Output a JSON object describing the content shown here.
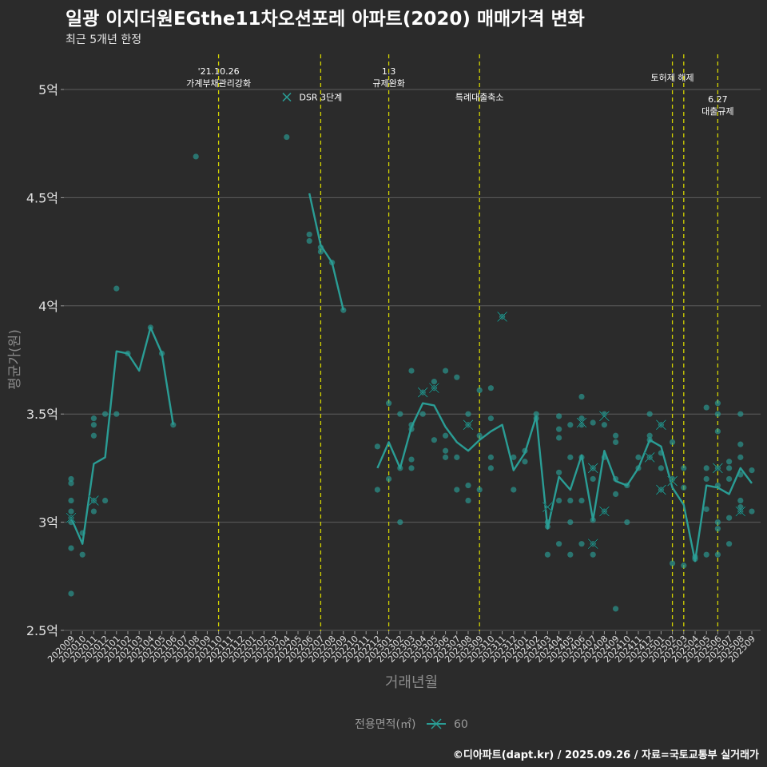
{
  "header": {
    "title": "일광 이지더원EGthe11차오션포레 아파트(2020) 매매가격 변화",
    "subtitle": "최근 5개년 한정"
  },
  "caption": "©디아파트(dapt.kr) / 2025.09.26 / 자료=국토교통부 실거래가",
  "colors": {
    "background": "#2b2b2b",
    "series": "#2a9d95",
    "grid": "#5e5e5e",
    "event_line": "#d4d400",
    "annotation_text": "#ffffff"
  },
  "legend": {
    "title": "전용면적(㎡)",
    "items": [
      {
        "label": "60",
        "icon": "line-with-x-marker"
      }
    ]
  },
  "chart_data": {
    "type": "line",
    "xlabel": "거래년월",
    "ylabel": "평균가(원)",
    "ylim": [
      2.5,
      5.15
    ],
    "yticks": [
      2.5,
      3,
      3.5,
      4,
      4.5,
      5
    ],
    "ytick_labels": [
      "2.5억",
      "3억",
      "3.5억",
      "4억",
      "4.5억",
      "5억"
    ],
    "grid": true,
    "legend_position": "bottom",
    "categories": [
      "202009",
      "202010",
      "202011",
      "202012",
      "202101",
      "202102",
      "202103",
      "202104",
      "202105",
      "202106",
      "202107",
      "202108",
      "202109",
      "202110",
      "202111",
      "202112",
      "202201",
      "202202",
      "202203",
      "202204",
      "202205",
      "202206",
      "202207",
      "202208",
      "202209",
      "202210",
      "202211",
      "202212",
      "202301",
      "202302",
      "202303",
      "202304",
      "202305",
      "202306",
      "202307",
      "202308",
      "202309",
      "202310",
      "202311",
      "202312",
      "202401",
      "202402",
      "202403",
      "202404",
      "202405",
      "202406",
      "202407",
      "202408",
      "202409",
      "202410",
      "202411",
      "202412",
      "202501",
      "202502",
      "202503",
      "202504",
      "202505",
      "202506",
      "202507",
      "202508",
      "202509"
    ],
    "series": [
      {
        "name": "60",
        "values": [
          3.02,
          2.9,
          3.27,
          3.3,
          3.79,
          3.78,
          3.7,
          3.9,
          3.78,
          3.45,
          null,
          null,
          null,
          null,
          null,
          null,
          null,
          null,
          null,
          null,
          null,
          4.52,
          4.28,
          4.2,
          3.98,
          null,
          null,
          3.25,
          3.37,
          3.25,
          3.44,
          3.55,
          3.54,
          3.44,
          3.37,
          3.33,
          3.38,
          3.42,
          3.45,
          3.24,
          3.32,
          3.49,
          2.97,
          3.21,
          3.15,
          3.31,
          3.01,
          3.33,
          3.19,
          3.17,
          3.25,
          3.38,
          3.35,
          3.16,
          3.08,
          2.82,
          3.17,
          3.16,
          3.13,
          3.25,
          3.18
        ]
      }
    ],
    "points": [
      [
        "202009",
        3.2
      ],
      [
        "202009",
        3.18
      ],
      [
        "202009",
        3.1
      ],
      [
        "202009",
        3.05
      ],
      [
        "202009",
        3.02
      ],
      [
        "202009",
        3.0
      ],
      [
        "202009",
        2.88
      ],
      [
        "202009",
        2.67
      ],
      [
        "202010",
        2.95
      ],
      [
        "202010",
        2.85
      ],
      [
        "202011",
        3.48
      ],
      [
        "202011",
        3.45
      ],
      [
        "202011",
        3.4
      ],
      [
        "202011",
        3.1
      ],
      [
        "202011",
        3.05
      ],
      [
        "202012",
        3.5
      ],
      [
        "202012",
        3.1
      ],
      [
        "202101",
        4.08
      ],
      [
        "202101",
        3.5
      ],
      [
        "202102",
        3.78
      ],
      [
        "202104",
        3.9
      ],
      [
        "202105",
        3.78
      ],
      [
        "202106",
        3.45
      ],
      [
        "202108",
        4.69
      ],
      [
        "202204",
        4.78
      ],
      [
        "202206",
        4.33
      ],
      [
        "202206",
        4.3
      ],
      [
        "202207",
        4.27
      ],
      [
        "202207",
        4.25
      ],
      [
        "202208",
        4.2
      ],
      [
        "202209",
        3.98
      ],
      [
        "202212",
        3.35
      ],
      [
        "202212",
        3.15
      ],
      [
        "202301",
        3.55
      ],
      [
        "202301",
        3.2
      ],
      [
        "202302",
        3.5
      ],
      [
        "202302",
        3.25
      ],
      [
        "202302",
        3.0
      ],
      [
        "202303",
        3.7
      ],
      [
        "202303",
        3.45
      ],
      [
        "202303",
        3.43
      ],
      [
        "202303",
        3.29
      ],
      [
        "202303",
        3.25
      ],
      [
        "202304",
        3.6
      ],
      [
        "202304",
        3.5
      ],
      [
        "202305",
        3.65
      ],
      [
        "202305",
        3.62
      ],
      [
        "202305",
        3.38
      ],
      [
        "202306",
        3.7
      ],
      [
        "202306",
        3.4
      ],
      [
        "202306",
        3.33
      ],
      [
        "202306",
        3.3
      ],
      [
        "202307",
        3.67
      ],
      [
        "202307",
        3.3
      ],
      [
        "202307",
        3.15
      ],
      [
        "202308",
        3.5
      ],
      [
        "202308",
        3.45
      ],
      [
        "202308",
        3.17
      ],
      [
        "202308",
        3.1
      ],
      [
        "202309",
        3.61
      ],
      [
        "202309",
        3.4
      ],
      [
        "202309",
        3.15
      ],
      [
        "202310",
        3.62
      ],
      [
        "202310",
        3.48
      ],
      [
        "202310",
        3.3
      ],
      [
        "202310",
        3.25
      ],
      [
        "202311",
        3.95
      ],
      [
        "202312",
        3.3
      ],
      [
        "202312",
        3.15
      ],
      [
        "202401",
        3.33
      ],
      [
        "202401",
        3.28
      ],
      [
        "202402",
        3.5
      ],
      [
        "202402",
        3.48
      ],
      [
        "202403",
        3.0
      ],
      [
        "202403",
        2.98
      ],
      [
        "202403",
        2.85
      ],
      [
        "202404",
        3.49
      ],
      [
        "202404",
        3.43
      ],
      [
        "202404",
        3.39
      ],
      [
        "202404",
        3.23
      ],
      [
        "202404",
        3.1
      ],
      [
        "202404",
        2.9
      ],
      [
        "202405",
        3.45
      ],
      [
        "202405",
        3.3
      ],
      [
        "202405",
        3.1
      ],
      [
        "202405",
        3.0
      ],
      [
        "202405",
        2.85
      ],
      [
        "202406",
        3.58
      ],
      [
        "202406",
        3.48
      ],
      [
        "202406",
        3.45
      ],
      [
        "202406",
        3.3
      ],
      [
        "202406",
        3.1
      ],
      [
        "202406",
        2.9
      ],
      [
        "202407",
        3.46
      ],
      [
        "202407",
        3.25
      ],
      [
        "202407",
        3.2
      ],
      [
        "202407",
        3.01
      ],
      [
        "202407",
        2.9
      ],
      [
        "202407",
        2.85
      ],
      [
        "202408",
        3.5
      ],
      [
        "202408",
        3.45
      ],
      [
        "202408",
        3.3
      ],
      [
        "202408",
        3.05
      ],
      [
        "202409",
        3.4
      ],
      [
        "202409",
        3.37
      ],
      [
        "202409",
        3.2
      ],
      [
        "202409",
        3.13
      ],
      [
        "202409",
        2.6
      ],
      [
        "202410",
        3.17
      ],
      [
        "202410",
        3.0
      ],
      [
        "202411",
        3.3
      ],
      [
        "202411",
        3.25
      ],
      [
        "202412",
        3.5
      ],
      [
        "202412",
        3.4
      ],
      [
        "202412",
        3.38
      ],
      [
        "202412",
        3.3
      ],
      [
        "202501",
        3.45
      ],
      [
        "202501",
        3.32
      ],
      [
        "202501",
        3.25
      ],
      [
        "202501",
        3.15
      ],
      [
        "202502",
        3.37
      ],
      [
        "202502",
        3.2
      ],
      [
        "202502",
        2.81
      ],
      [
        "202503",
        3.25
      ],
      [
        "202503",
        3.16
      ],
      [
        "202503",
        2.8
      ],
      [
        "202504",
        2.84
      ],
      [
        "202504",
        2.83
      ],
      [
        "202505",
        3.53
      ],
      [
        "202505",
        3.25
      ],
      [
        "202505",
        3.2
      ],
      [
        "202505",
        3.06
      ],
      [
        "202505",
        2.85
      ],
      [
        "202506",
        3.55
      ],
      [
        "202506",
        3.5
      ],
      [
        "202506",
        3.42
      ],
      [
        "202506",
        3.25
      ],
      [
        "202506",
        3.17
      ],
      [
        "202506",
        3.0
      ],
      [
        "202506",
        2.97
      ],
      [
        "202506",
        2.85
      ],
      [
        "202507",
        3.28
      ],
      [
        "202507",
        3.25
      ],
      [
        "202507",
        3.2
      ],
      [
        "202507",
        3.02
      ],
      [
        "202507",
        2.9
      ],
      [
        "202508",
        3.5
      ],
      [
        "202508",
        3.36
      ],
      [
        "202508",
        3.3
      ],
      [
        "202508",
        3.22
      ],
      [
        "202508",
        3.1
      ],
      [
        "202508",
        3.07
      ],
      [
        "202508",
        3.05
      ],
      [
        "202509",
        3.24
      ],
      [
        "202509",
        3.05
      ]
    ],
    "x_markers": [
      [
        "202009",
        3.02
      ],
      [
        "202011",
        3.1
      ],
      [
        "202304",
        3.6
      ],
      [
        "202305",
        3.62
      ],
      [
        "202308",
        3.45
      ],
      [
        "202311",
        3.95
      ],
      [
        "202403",
        3.07
      ],
      [
        "202406",
        3.46
      ],
      [
        "202407",
        3.25
      ],
      [
        "202407",
        2.9
      ],
      [
        "202408",
        3.49
      ],
      [
        "202408",
        3.05
      ],
      [
        "202412",
        3.3
      ],
      [
        "202501",
        3.45
      ],
      [
        "202501",
        3.15
      ],
      [
        "202502",
        3.19
      ],
      [
        "202506",
        3.25
      ],
      [
        "202508",
        3.05
      ]
    ],
    "event_lines": [
      {
        "x": "202110",
        "label_lines": [
          "'21.10.26",
          "가계부채관리강화"
        ],
        "label_y": 5.07
      },
      {
        "x": "202207",
        "label_lines": [
          "DSR 3단계"
        ],
        "label_y": 4.95
      },
      {
        "x": "202301",
        "label_lines": [
          "1.3",
          "규제완화"
        ],
        "label_y": 5.07
      },
      {
        "x": "202309",
        "label_lines": [
          "특례대출축소"
        ],
        "label_y": 4.95
      },
      {
        "x": "202502",
        "label_lines": [
          "토허제 해제"
        ],
        "label_y": 5.04
      },
      {
        "x": "202503",
        "label_lines": [],
        "label_y": 5.0
      },
      {
        "x": "202506",
        "label_lines": [
          "6.27",
          "대출규제"
        ],
        "label_y": 4.94
      }
    ]
  }
}
